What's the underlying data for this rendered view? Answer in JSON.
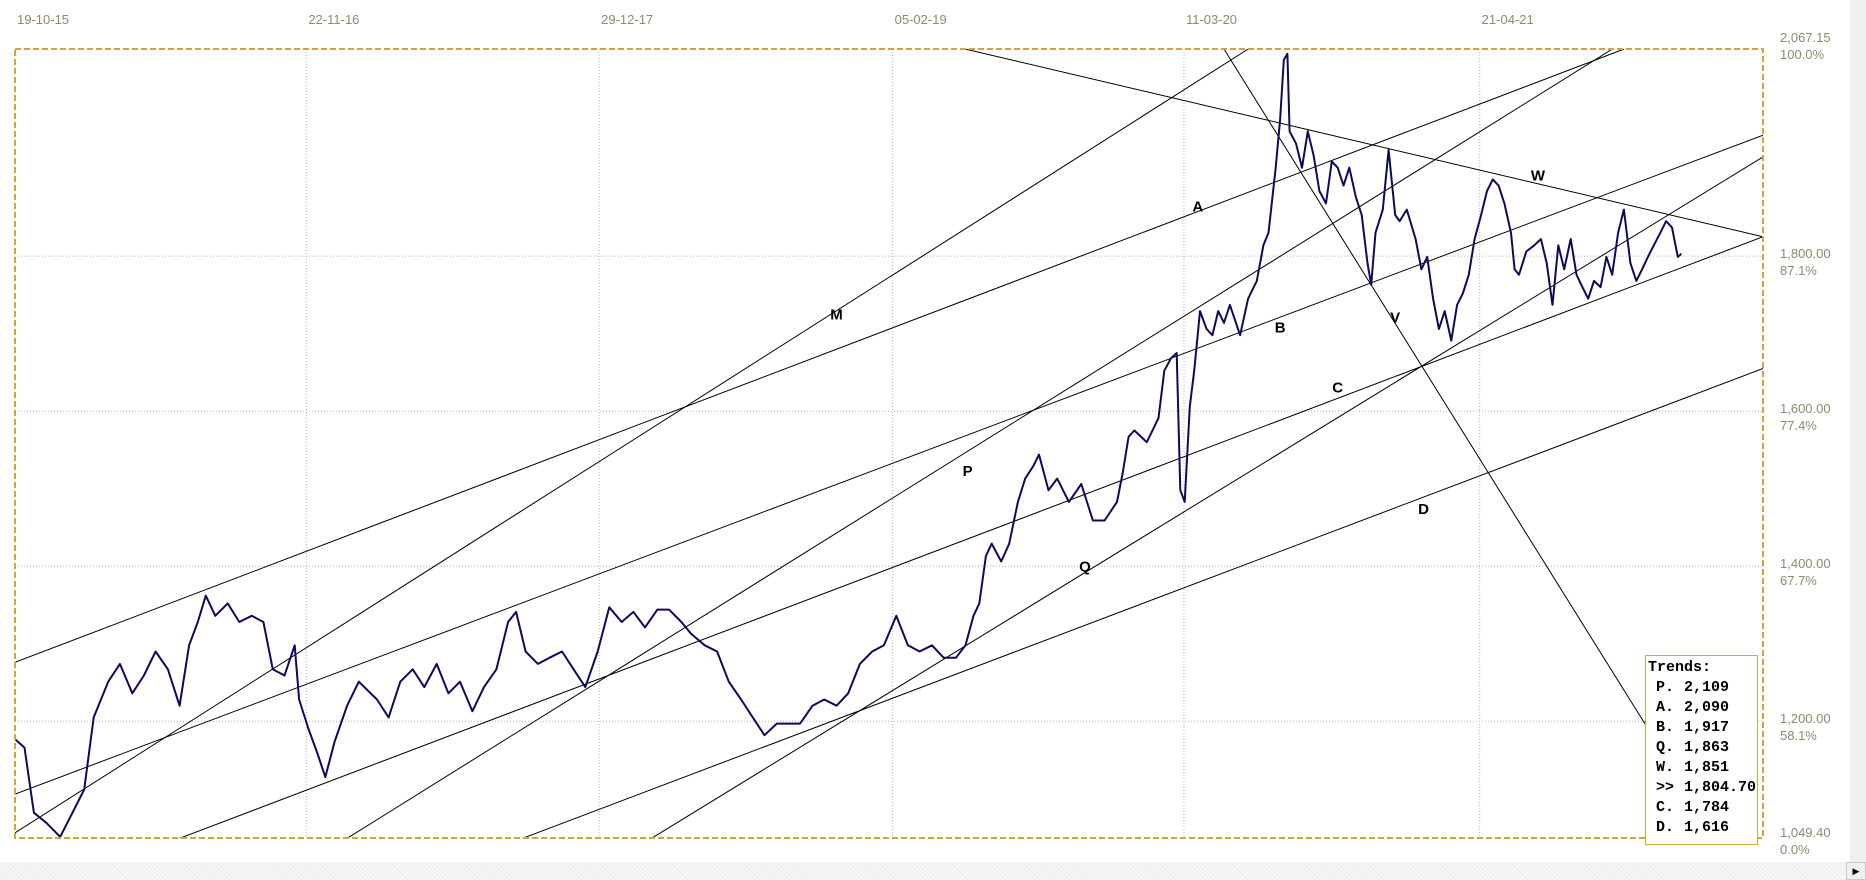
{
  "chart_data": {
    "type": "line",
    "x_unit": "days since 19-10-15",
    "xlim": [
      0,
      2400
    ],
    "ylim": [
      1049.4,
      2067.15
    ],
    "grid": true,
    "x_ticks": [
      {
        "day": 0,
        "label": "19-10-15"
      },
      {
        "day": 400,
        "label": "22-11-16"
      },
      {
        "day": 802,
        "label": "29-12-17"
      },
      {
        "day": 1205,
        "label": "05-02-19"
      },
      {
        "day": 1605,
        "label": "11-03-20"
      },
      {
        "day": 2011,
        "label": "21-04-21"
      }
    ],
    "y_ticks": [
      {
        "value": 2067.15,
        "label": "2,067.15",
        "pct": "100.0%"
      },
      {
        "value": 1800,
        "label": "1,800.00",
        "pct": "87.1%"
      },
      {
        "value": 1600,
        "label": "1,600.00",
        "pct": "77.4%"
      },
      {
        "value": 1400,
        "label": "1,400.00",
        "pct": "67.7%"
      },
      {
        "value": 1200,
        "label": "1,200.00",
        "pct": "58.1%"
      },
      {
        "value": 1049.4,
        "label": "1,049.40",
        "pct": "0.0%"
      }
    ],
    "series": [
      {
        "name": "price",
        "color": "#0b0b5c",
        "days": [
          0,
          13,
          26,
          43,
          62,
          79,
          95,
          108,
          128,
          144,
          161,
          177,
          193,
          210,
          226,
          239,
          251,
          262,
          275,
          292,
          308,
          325,
          341,
          354,
          370,
          384,
          390,
          403,
          415,
          426,
          439,
          456,
          472,
          497,
          513,
          529,
          546,
          562,
          579,
          595,
          611,
          628,
          644,
          661,
          677,
          688,
          701,
          718,
          734,
          751,
          767,
          783,
          800,
          816,
          833,
          849,
          865,
          882,
          898,
          915,
          928,
          947,
          964,
          980,
          997,
          1013,
          1029,
          1046,
          1062,
          1078,
          1095,
          1111,
          1128,
          1144,
          1160,
          1177,
          1193,
          1210,
          1226,
          1242,
          1259,
          1275,
          1292,
          1305,
          1316,
          1324,
          1333,
          1341,
          1354,
          1365,
          1377,
          1387,
          1398,
          1406,
          1419,
          1431,
          1447,
          1464,
          1480,
          1496,
          1513,
          1521,
          1529,
          1537,
          1554,
          1570,
          1578,
          1587,
          1595,
          1600,
          1606,
          1613,
          1619,
          1627,
          1636,
          1644,
          1652,
          1660,
          1668,
          1682,
          1693,
          1705,
          1714,
          1721,
          1731,
          1737,
          1742,
          1747,
          1750,
          1759,
          1767,
          1775,
          1783,
          1791,
          1800,
          1808,
          1816,
          1824,
          1832,
          1841,
          1849,
          1857,
          1862,
          1868,
          1878,
          1886,
          1895,
          1901,
          1911,
          1923,
          1931,
          1939,
          1947,
          1955,
          1963,
          1972,
          1980,
          1988,
          1996,
          2004,
          2013,
          2021,
          2029,
          2037,
          2045,
          2054,
          2059,
          2065,
          2075,
          2086,
          2095,
          2103,
          2111,
          2119,
          2127,
          2136,
          2144,
          2152,
          2160,
          2168,
          2177,
          2185,
          2193,
          2201,
          2209,
          2218,
          2226,
          2234,
          2242,
          2250,
          2259,
          2267,
          2275,
          2283,
          2288
        ],
        "prices": [
          1177,
          1166,
          1082,
          1069,
          1051,
          1082,
          1112,
          1205,
          1251,
          1274,
          1236,
          1259,
          1290,
          1267,
          1220,
          1298,
          1328,
          1362,
          1336,
          1352,
          1328,
          1336,
          1328,
          1267,
          1259,
          1298,
          1228,
          1190,
          1159,
          1128,
          1174,
          1220,
          1251,
          1228,
          1205,
          1251,
          1267,
          1244,
          1274,
          1236,
          1251,
          1213,
          1244,
          1267,
          1328,
          1341,
          1290,
          1274,
          1282,
          1290,
          1267,
          1244,
          1290,
          1347,
          1328,
          1341,
          1321,
          1344,
          1344,
          1328,
          1313,
          1298,
          1290,
          1251,
          1228,
          1205,
          1182,
          1197,
          1197,
          1197,
          1220,
          1228,
          1220,
          1236,
          1274,
          1290,
          1298,
          1336,
          1298,
          1290,
          1298,
          1282,
          1282,
          1298,
          1336,
          1352,
          1413,
          1429,
          1406,
          1429,
          1483,
          1513,
          1529,
          1544,
          1498,
          1513,
          1483,
          1506,
          1459,
          1459,
          1483,
          1521,
          1567,
          1575,
          1560,
          1591,
          1652,
          1668,
          1675,
          1498,
          1483,
          1606,
          1652,
          1729,
          1706,
          1698,
          1729,
          1714,
          1737,
          1698,
          1745,
          1768,
          1814,
          1830,
          1914,
          1976,
          2053,
          2061,
          1961,
          1945,
          1914,
          1961,
          1930,
          1884,
          1868,
          1922,
          1914,
          1891,
          1914,
          1876,
          1853,
          1791,
          1763,
          1830,
          1860,
          1937,
          1853,
          1845,
          1860,
          1822,
          1783,
          1799,
          1745,
          1706,
          1729,
          1691,
          1737,
          1752,
          1776,
          1822,
          1853,
          1884,
          1899,
          1891,
          1868,
          1830,
          1783,
          1776,
          1806,
          1814,
          1822,
          1791,
          1737,
          1814,
          1783,
          1822,
          1776,
          1760,
          1745,
          1768,
          1760,
          1799,
          1776,
          1830,
          1860,
          1791,
          1768,
          1783,
          1799,
          1814,
          1830,
          1845,
          1837,
          1799,
          1803
        ]
      }
    ],
    "trend_lines": [
      {
        "name": "A",
        "from": [
          0,
          1276
        ],
        "to": [
          2209,
          2067
        ],
        "label_at": [
          1624,
          1865
        ]
      },
      {
        "name": "B",
        "from": [
          0,
          1106
        ],
        "to": [
          2400,
          1956
        ],
        "label_at": [
          1737,
          1709
        ]
      },
      {
        "name": "C",
        "from": [
          226,
          1049
        ],
        "to": [
          2400,
          1825
        ],
        "label_at": [
          1816,
          1632
        ]
      },
      {
        "name": "D",
        "from": [
          697,
          1049
        ],
        "to": [
          2400,
          1655
        ],
        "label_at": [
          1934,
          1475
        ]
      },
      {
        "name": "M",
        "from": [
          0,
          1056
        ],
        "to": [
          1693,
          2067
        ],
        "label_at": [
          1128,
          1726
        ]
      },
      {
        "name": "P",
        "from": [
          456,
          1049
        ],
        "to": [
          2193,
          2067
        ],
        "label_at": [
          1308,
          1524
        ]
      },
      {
        "name": "Q",
        "from": [
          874,
          1049
        ],
        "to": [
          2400,
          1928
        ],
        "label_at": [
          1469,
          1401
        ]
      },
      {
        "name": "V",
        "from": [
          1660,
          2067
        ],
        "to": [
          2336,
          1049
        ],
        "label_at": [
          1895,
          1722
        ]
      },
      {
        "name": "W",
        "from": [
          1305,
          2067
        ],
        "to": [
          2400,
          1825
        ],
        "label_at": [
          2091,
          1905
        ]
      }
    ],
    "colors": {
      "frame": "#d4a33a",
      "grid": "#b5b5b5",
      "axis_text": "#8b8b6e",
      "trend": "#000000"
    }
  },
  "trends_box": {
    "title": "Trends:",
    "items": [
      {
        "key": "P.",
        "value": "2,109"
      },
      {
        "key": "A.",
        "value": "2,090"
      },
      {
        "key": "B.",
        "value": "1,917"
      },
      {
        "key": "Q.",
        "value": "1,863"
      },
      {
        "key": "W.",
        "value": "1,851"
      },
      {
        "key": ">>",
        "value": "1,804.70"
      },
      {
        "key": "C.",
        "value": "1,784"
      },
      {
        "key": "D.",
        "value": "1,616"
      }
    ]
  },
  "scrollbar": {
    "arrow_icon": "right-arrow-icon",
    "arrow_glyph": "▶"
  }
}
